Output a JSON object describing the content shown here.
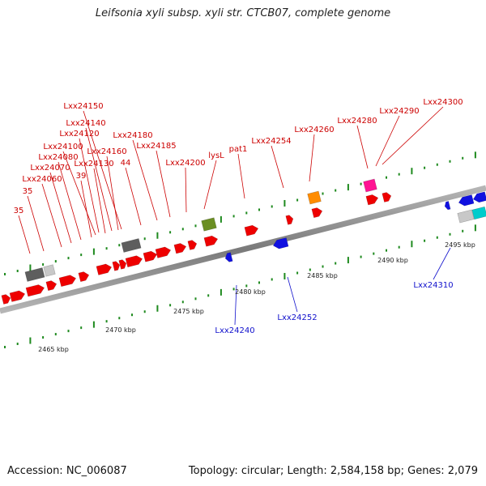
{
  "title": "Leifsonia xyli subsp. xyli str. CTCB07, complete genome",
  "footer": {
    "accession": "Accession: NC_006087",
    "summary": "Topology: circular; Length: 2,584,158 bp; Genes: 2,079"
  },
  "scale_labels": [
    "2465 kbp",
    "2470 kbp",
    "2475 kbp",
    "2480 kbp",
    "2485 kbp",
    "2490 kbp",
    "2495 kbp"
  ],
  "labels_top": [
    "35",
    "35",
    "Lxx24060",
    "Lxx24070",
    "Lxx24080",
    "39",
    "Lxx24100",
    "Lxx24130",
    "Lxx24120",
    "Lxx24140",
    "Lxx24160",
    "Lxx24150",
    "44",
    "Lxx24180",
    "Lxx24185",
    "Lxx24200",
    "lysL",
    "pat1",
    "Lxx24254",
    "Lxx24260",
    "Lxx24280",
    "Lxx24290",
    "Lxx24300"
  ],
  "labels_bottom": [
    "Lxx24240",
    "Lxx24252",
    "Lxx24310"
  ],
  "colors": {
    "backbone": "#8a8a8a",
    "forward_gene": "#ee0000",
    "reverse_gene": "#1010e0",
    "label_forward": "#cc0000",
    "label_reverse": "#1010cc",
    "tick": "#1f8a1f",
    "rna": "#5e5e5e",
    "other_gray": "#c8c8c8",
    "olive": "#6b8e23",
    "orange": "#ff8c00",
    "magenta": "#ff1493",
    "cyan": "#00cccc"
  }
}
